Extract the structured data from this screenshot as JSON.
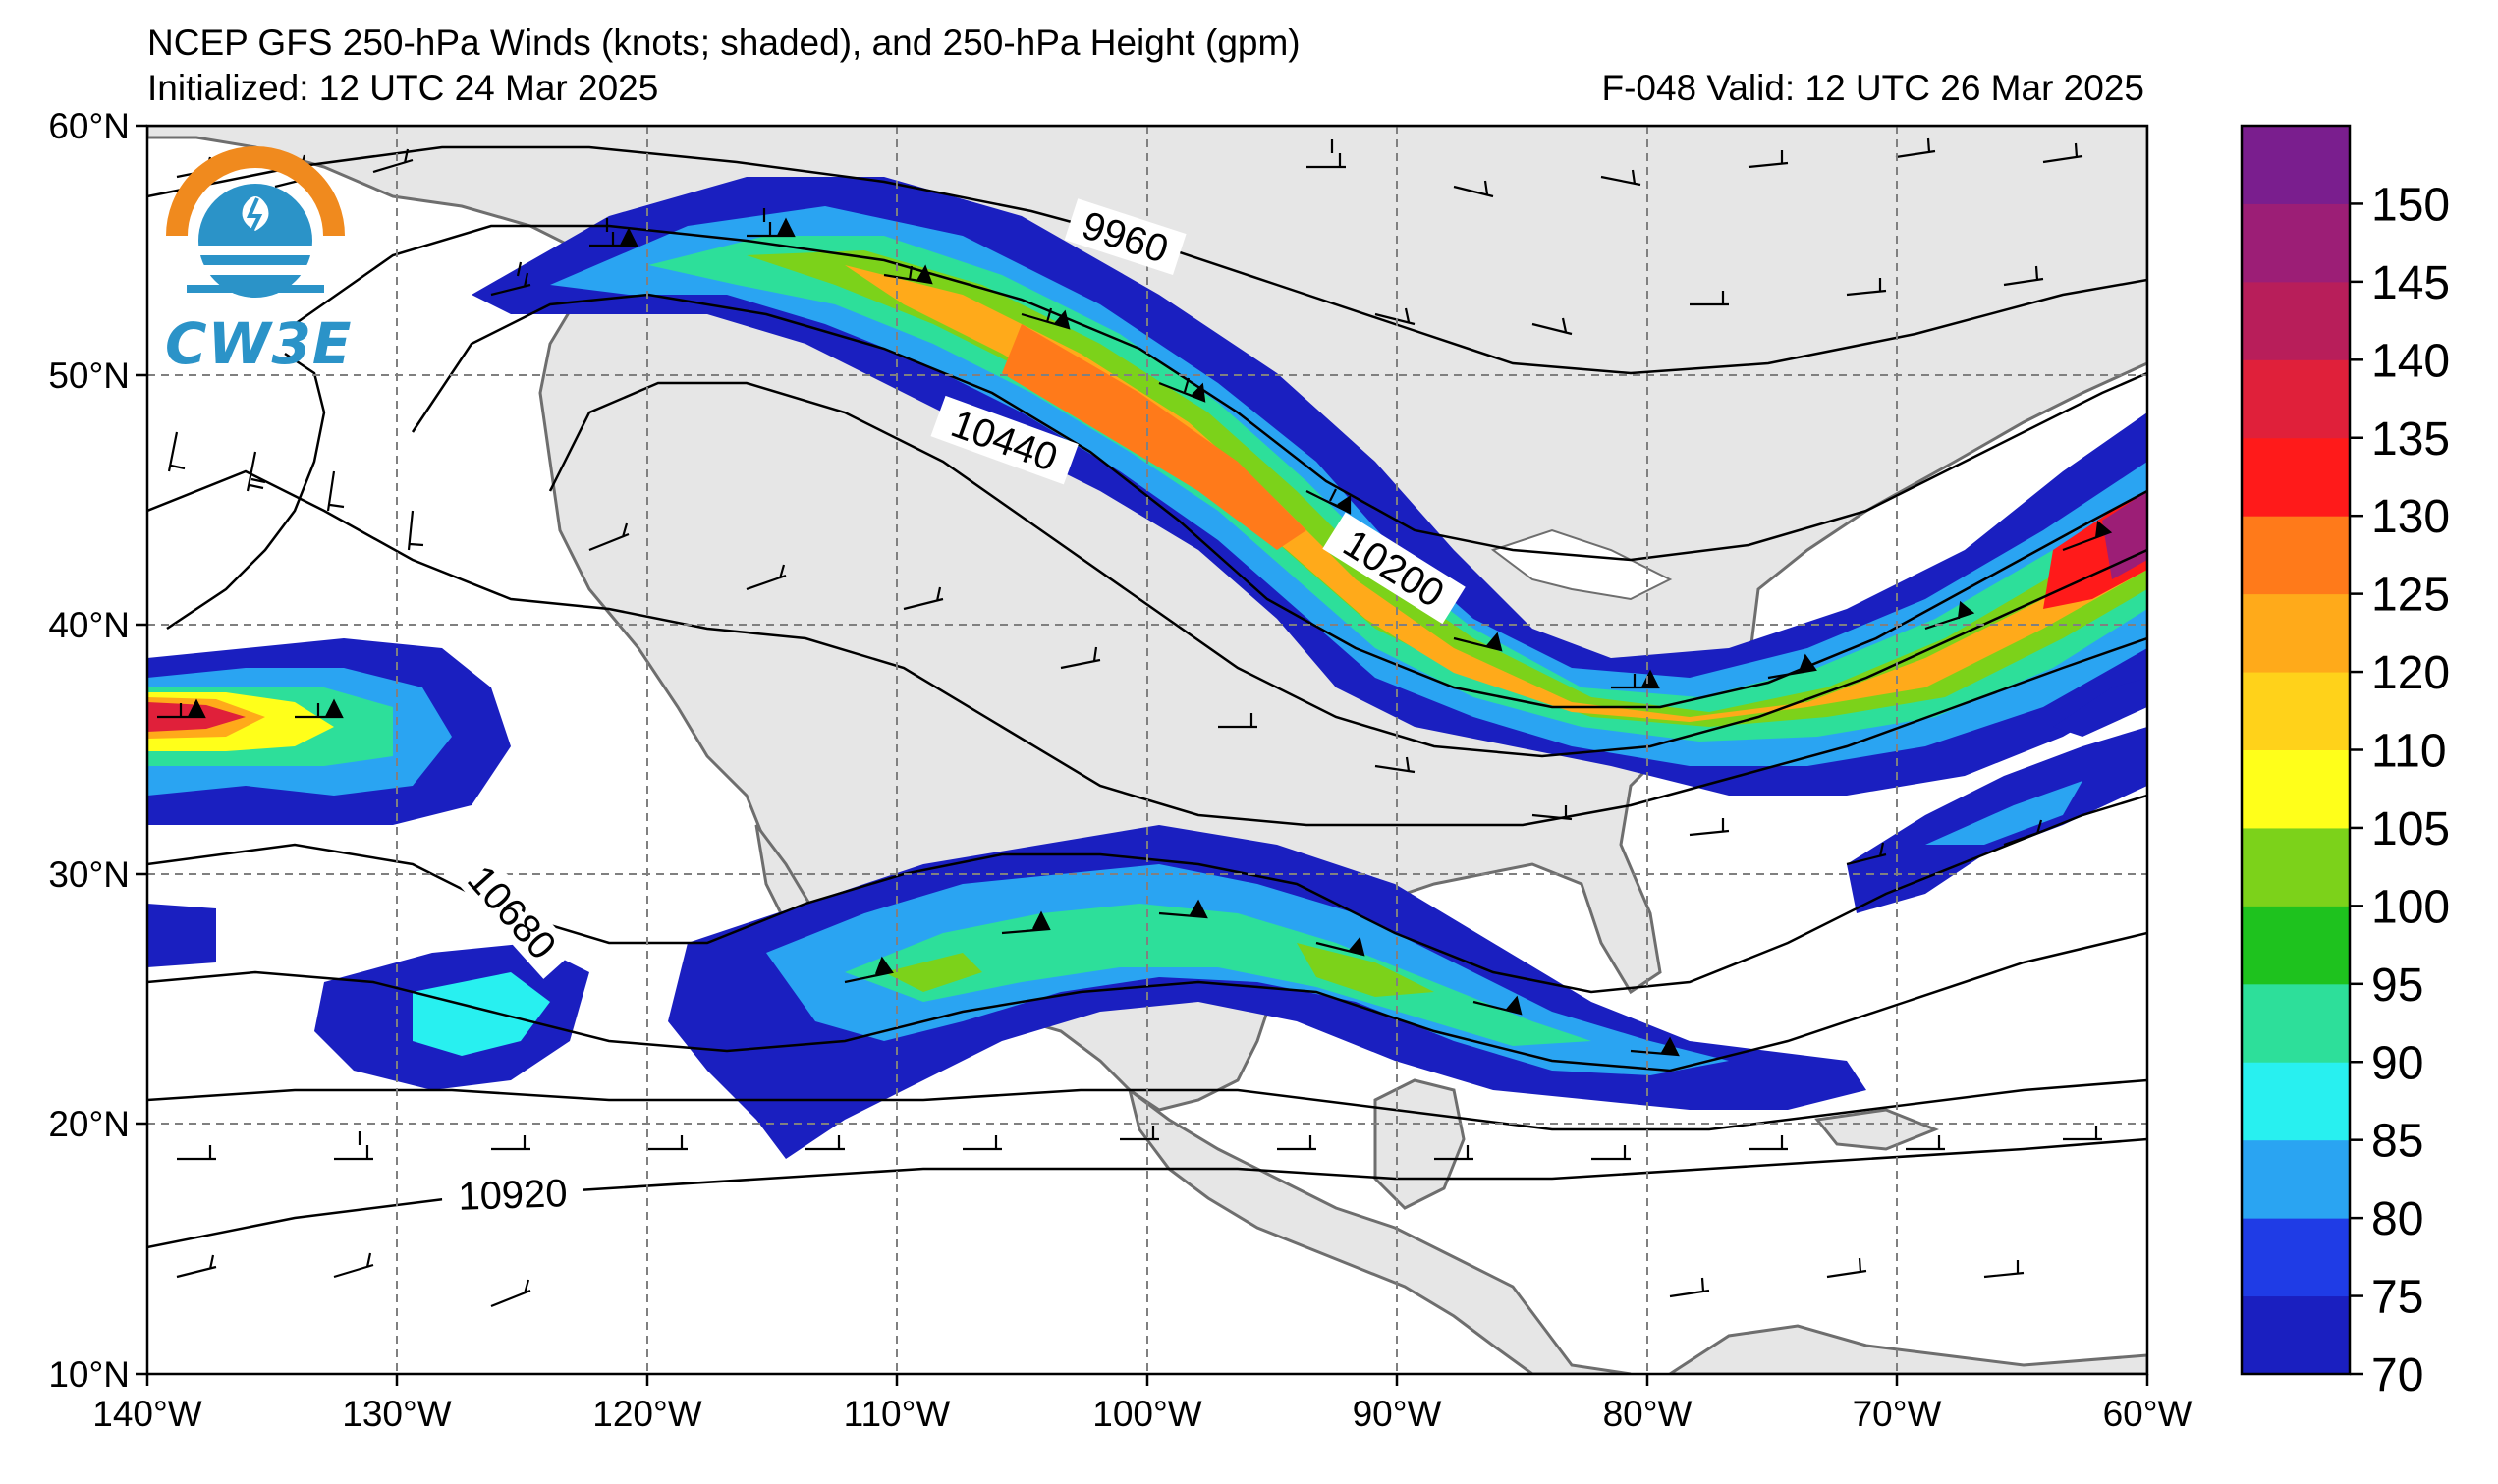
{
  "title": "NCEP GFS 250-hPa Winds (knots; shaded), and 250-hPa Height (gpm)",
  "initialized": "Initialized: 12 UTC 24 Mar 2025",
  "valid": "F-048  Valid: 12 UTC 26 Mar 2025",
  "logo_text": "CW3E",
  "lat_labels": [
    "60°N",
    "50°N",
    "40°N",
    "30°N",
    "20°N",
    "10°N"
  ],
  "lon_labels": [
    "140°W",
    "130°W",
    "120°W",
    "110°W",
    "100°W",
    "90°W",
    "80°W",
    "70°W",
    "60°W"
  ],
  "contour_labels": [
    "9960",
    "10440",
    "10200",
    "10680",
    "10920"
  ],
  "colorbar": {
    "ticks": [
      "70",
      "75",
      "80",
      "85",
      "90",
      "95",
      "100",
      "105",
      "110",
      "120",
      "125",
      "130",
      "135",
      "140",
      "145",
      "150"
    ],
    "colors": [
      "#1a1fc0",
      "#1f3ce6",
      "#2aa4f2",
      "#28f0f0",
      "#2ddf9a",
      "#1ec21e",
      "#7cd21a",
      "#ffff1a",
      "#ffd21a",
      "#ffaa1a",
      "#ff7a1a",
      "#ff1a1a",
      "#e0203a",
      "#b81e5a",
      "#9c1e76",
      "#7a1e8e"
    ]
  },
  "colors": {
    "land": "#e6e6e6",
    "coast": "#6e6e6e",
    "ocean": "#ffffff",
    "contour": "#000000",
    "grid": "#808080"
  }
}
